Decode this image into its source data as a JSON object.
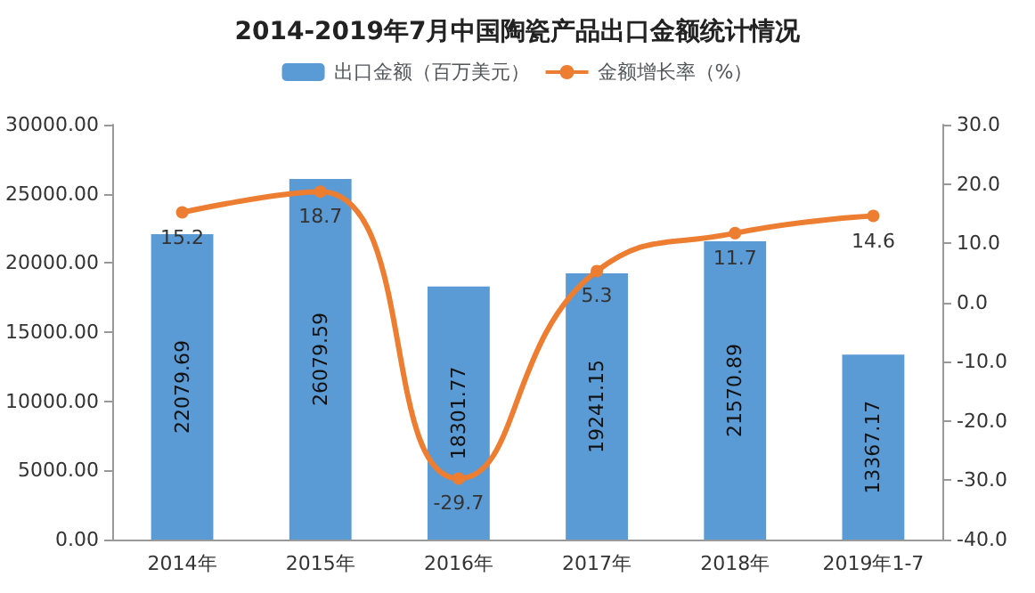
{
  "chart_data": {
    "type": "bar",
    "title": "2014-2019年7月中国陶瓷产品出口金额统计情况",
    "categories": [
      "2014年",
      "2015年",
      "2016年",
      "2017年",
      "2018年",
      "2019年1-7"
    ],
    "series": [
      {
        "name": "出口金额（百万美元）",
        "color": "#5b9bd5",
        "values": [
          22079.69,
          26079.59,
          18301.77,
          19241.15,
          21570.89,
          13367.17
        ]
      },
      {
        "name": "金额增长率（%）",
        "type": "line",
        "axis": "y2",
        "color": "#ed7d31",
        "values": [
          15.2,
          18.7,
          -29.7,
          5.3,
          11.7,
          14.6
        ]
      }
    ],
    "ylim": [
      0,
      30000
    ],
    "yticks": [
      {
        "value": 0,
        "label": "0.00"
      },
      {
        "value": 5000,
        "label": "5000.00"
      },
      {
        "value": 10000,
        "label": "10000.00"
      },
      {
        "value": 15000,
        "label": "15000.00"
      },
      {
        "value": 20000,
        "label": "20000.00"
      },
      {
        "value": 25000,
        "label": "25000.00"
      },
      {
        "value": 30000,
        "label": "30000.00"
      }
    ],
    "y2lim": [
      -40,
      30
    ],
    "y2ticks": [
      {
        "value": -40,
        "label": "-40.0"
      },
      {
        "value": -30,
        "label": "-30.0"
      },
      {
        "value": -20,
        "label": "-20.0"
      },
      {
        "value": -10,
        "label": "-10.0"
      },
      {
        "value": 0,
        "label": "0.0"
      },
      {
        "value": 10,
        "label": "10.0"
      },
      {
        "value": 20,
        "label": "20.0"
      },
      {
        "value": 30,
        "label": "30.0"
      }
    ],
    "legend": "top",
    "marker": "circle",
    "data_labels": true
  }
}
